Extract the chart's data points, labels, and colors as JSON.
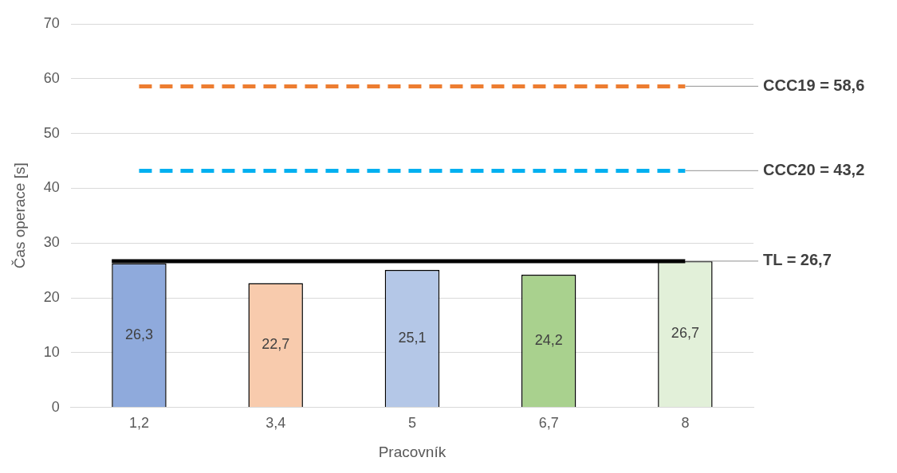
{
  "chart_data": {
    "type": "bar",
    "xlabel": "Pracovník",
    "ylabel": "Čas operace [s]",
    "categories": [
      "1,2",
      "3,4",
      "5",
      "6,7",
      "8"
    ],
    "values": [
      26.3,
      22.7,
      25.1,
      24.2,
      26.7
    ],
    "colors": [
      "#8faadc",
      "#f8cbad",
      "#b4c7e7",
      "#a9d18e",
      "#e2f0d9"
    ],
    "value_labels": [
      "26,3",
      "22,7",
      "25,1",
      "24,2",
      "26,7"
    ],
    "ylim": [
      0,
      70
    ],
    "yticks": [
      0,
      10,
      20,
      30,
      40,
      50,
      60,
      70
    ],
    "grid": "y",
    "legend": false,
    "ref_lines": [
      {
        "axis": "y",
        "value": 58.6,
        "label": "CCC19 = 58,6",
        "color": "#ed7d31",
        "line_style": "dashed"
      },
      {
        "axis": "y",
        "value": 43.2,
        "label": "CCC20 = 43,2",
        "color": "#00b0f0",
        "line_style": "dashed"
      },
      {
        "axis": "y",
        "value": 26.7,
        "label": "TL = 26,7",
        "color": "#000000",
        "line_style": "solid"
      }
    ]
  }
}
